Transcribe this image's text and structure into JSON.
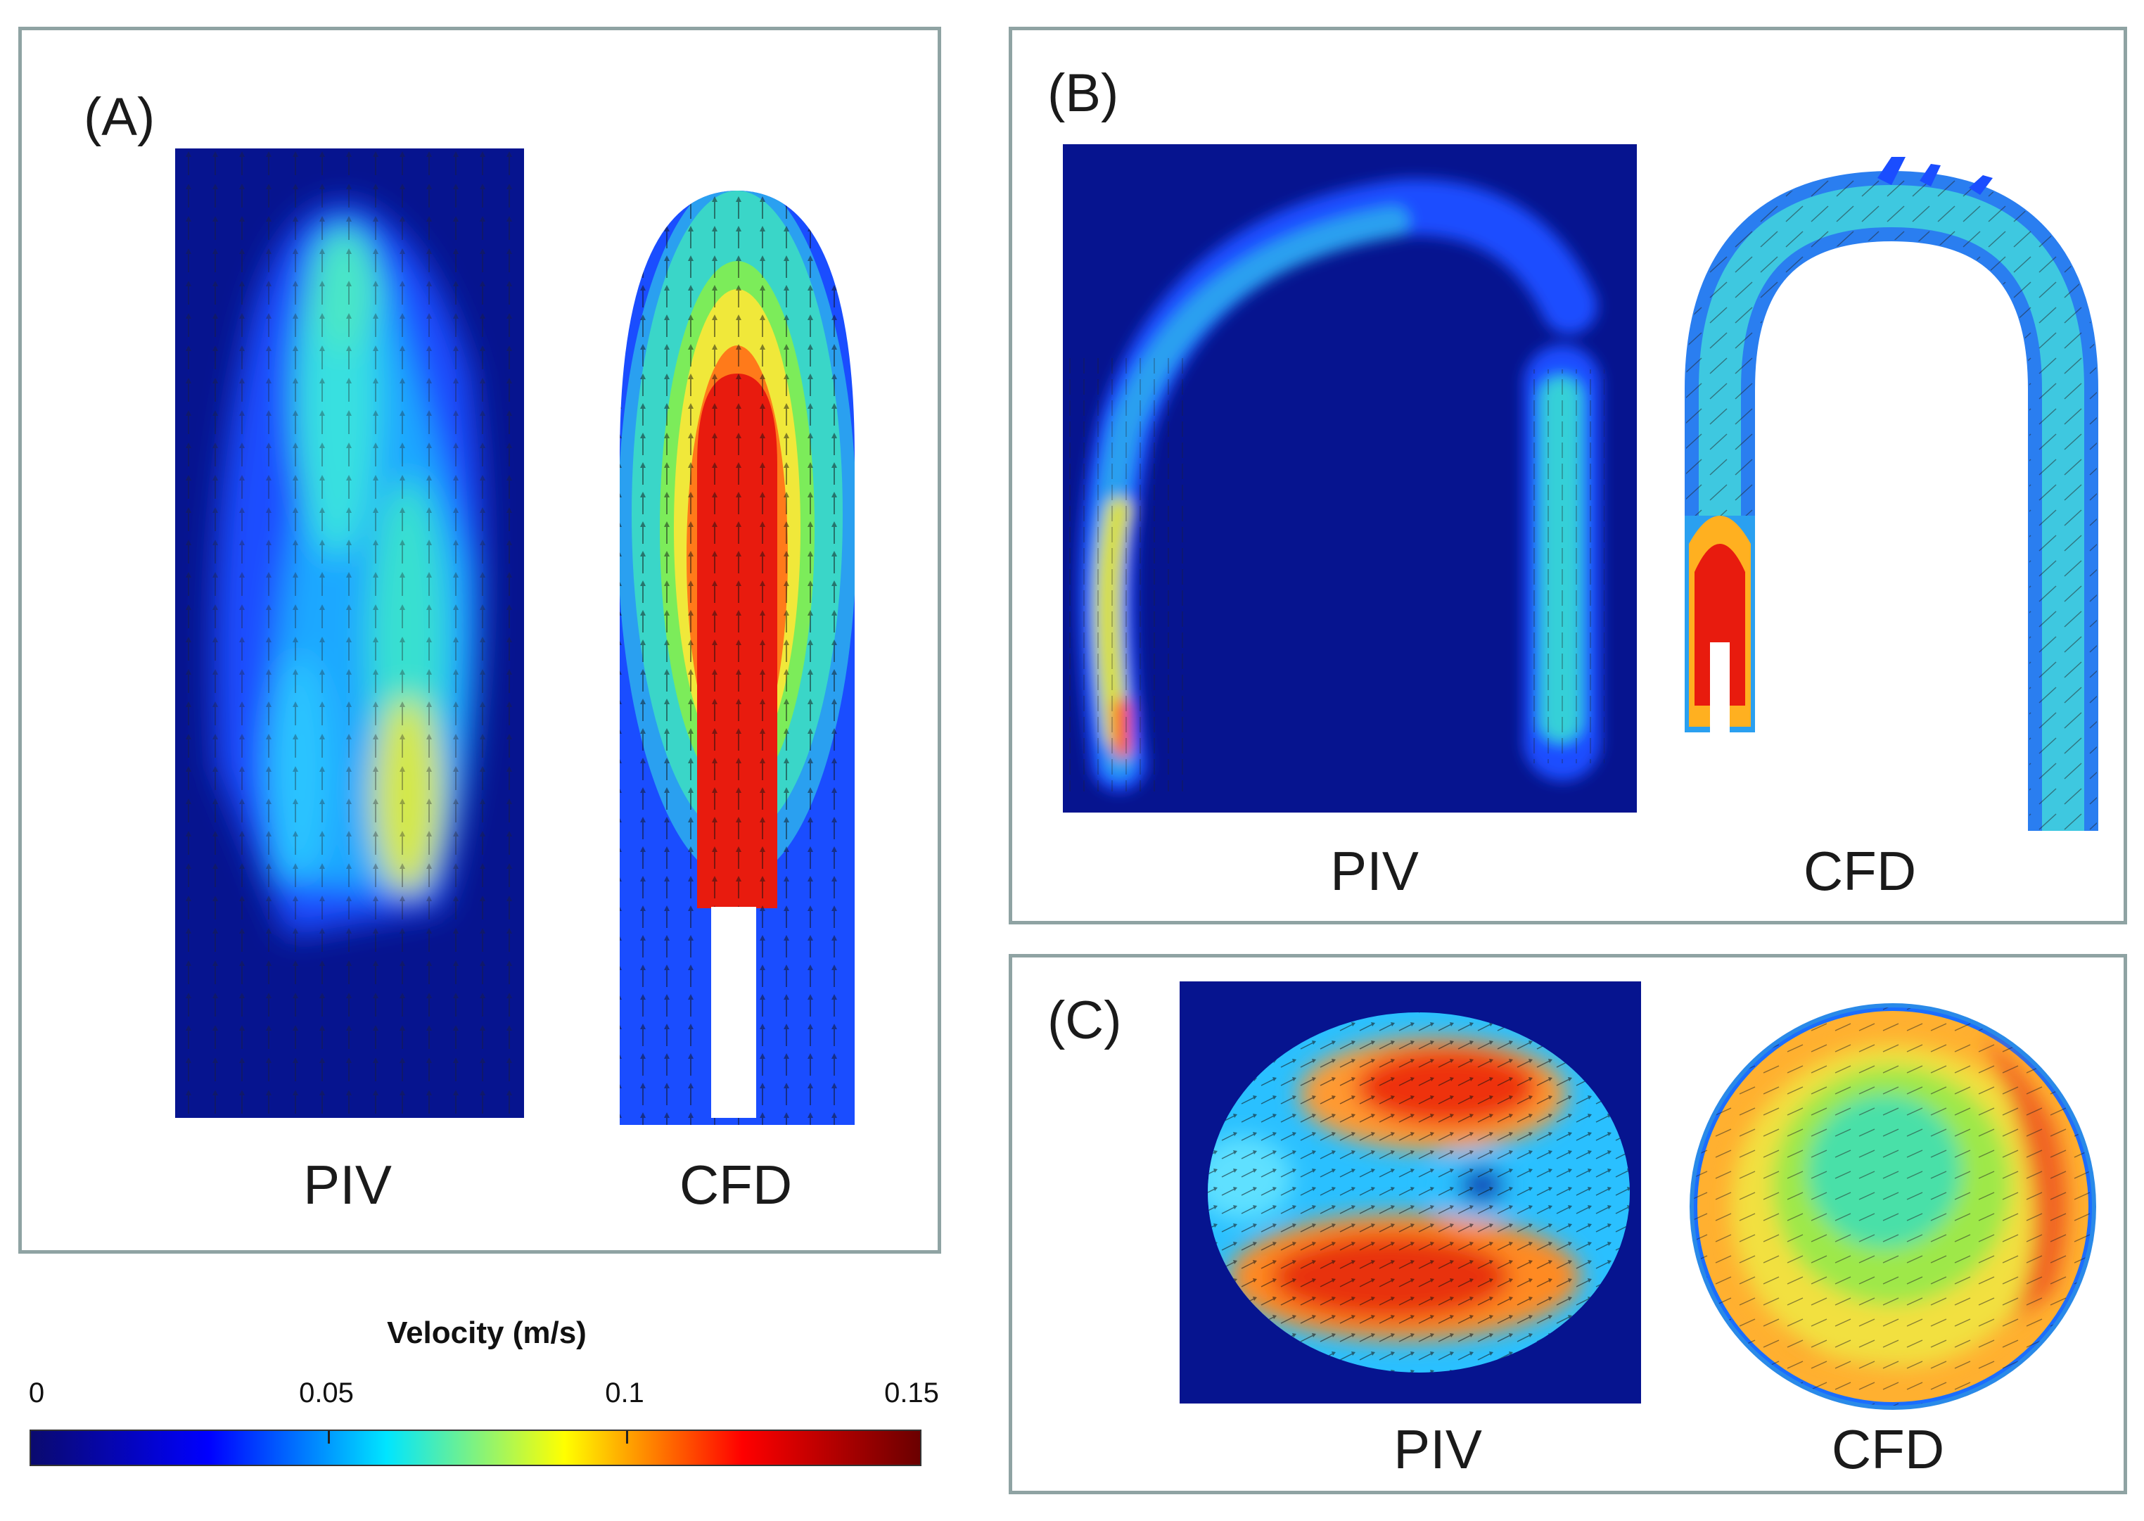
{
  "panels": {
    "a": {
      "label": "(A)",
      "left_caption": "PIV",
      "right_caption": "CFD"
    },
    "b": {
      "label": "(B)",
      "left_caption": "PIV",
      "right_caption": "CFD"
    },
    "c": {
      "label": "(C)",
      "left_caption": "PIV",
      "right_caption": "CFD"
    }
  },
  "colorbar": {
    "title": "Velocity (m/s)",
    "ticks": [
      "0",
      "0.05",
      "0.1",
      "0.15"
    ],
    "colors": [
      "#0a0a6e",
      "#0000ff",
      "#00e5ff",
      "#ffff00",
      "#ff0000",
      "#6b0000"
    ]
  }
}
